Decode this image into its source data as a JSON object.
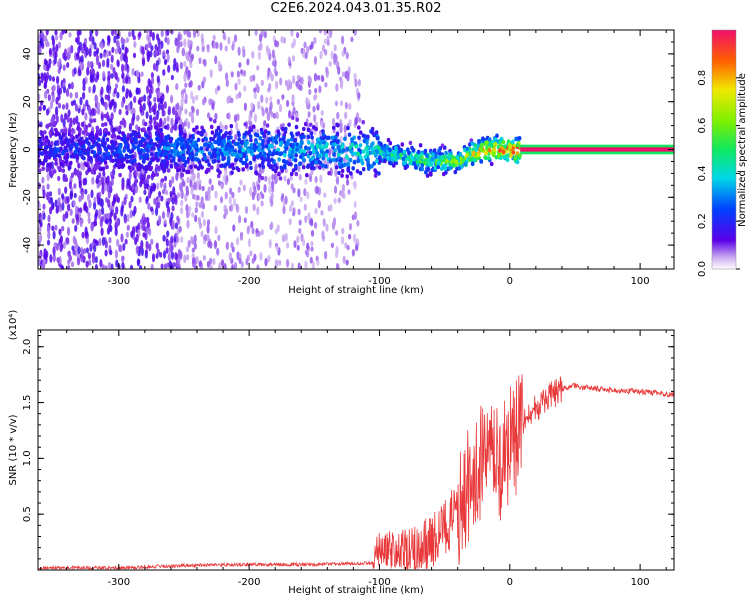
{
  "title": "C2E6.2024.043.01.35.R02",
  "colors": {
    "snr_line": "#e8383a",
    "spectrum_core": "#1ee07a",
    "spectrum_mid": "#00c8d0",
    "spectrum_low": "#5a00e8",
    "spectrum_faint": "#c9a8f0"
  },
  "chart_data": [
    {
      "type": "heatmap",
      "title": "C2E6.2024.043.01.35.R02",
      "xlabel": "Height of straight line (km)",
      "ylabel": "Frequency (Hz)",
      "xlim": [
        -362,
        126
      ],
      "ylim": [
        -50,
        50
      ],
      "xticks": [
        -300,
        -200,
        -100,
        0,
        100
      ],
      "yticks": [
        -40,
        -20,
        0,
        20,
        40
      ],
      "colorbar": {
        "label": "Normalized spectral amplitude",
        "range": [
          0,
          1
        ],
        "ticks": [
          "0.0",
          "0.2",
          "0.4",
          "0.6",
          "0.8"
        ]
      },
      "ridge": [
        {
          "x": -260,
          "freq": 0,
          "amp": 0.3
        },
        {
          "x": -200,
          "freq": 0,
          "amp": 0.35
        },
        {
          "x": -150,
          "freq": 0,
          "amp": 0.4
        },
        {
          "x": -100,
          "freq": -1,
          "amp": 0.45
        },
        {
          "x": -80,
          "freq": -3,
          "amp": 0.5
        },
        {
          "x": -60,
          "freq": -5,
          "amp": 0.55
        },
        {
          "x": -40,
          "freq": -5,
          "amp": 0.6
        },
        {
          "x": -20,
          "freq": 0,
          "amp": 0.8
        },
        {
          "x": 0,
          "freq": 0,
          "amp": 0.95
        },
        {
          "x": 126,
          "freq": 0,
          "amp": 1.0
        }
      ]
    },
    {
      "type": "line",
      "xlabel": "Height of straight line (km)",
      "ylabel": "SNR (10 * v/v)",
      "y_multiplier": "(x10⁴)",
      "xlim": [
        -362,
        126
      ],
      "ylim": [
        0,
        2.15
      ],
      "xticks": [
        -300,
        -200,
        -100,
        0,
        100
      ],
      "yticks": [
        "0.5",
        "1.0",
        "1.5",
        "2.0"
      ],
      "series": [
        {
          "x": [
            -362,
            -300,
            -250,
            -200,
            -150,
            -105,
            -100,
            -80,
            -60,
            -40,
            -30,
            -20,
            -10,
            0,
            10,
            20,
            30,
            40,
            50,
            60,
            80,
            100,
            126
          ],
          "y": [
            0.02,
            0.02,
            0.04,
            0.05,
            0.05,
            0.06,
            0.2,
            0.15,
            0.25,
            0.5,
            0.8,
            1.0,
            0.9,
            1.1,
            1.3,
            1.45,
            1.55,
            1.62,
            1.65,
            1.63,
            1.61,
            1.6,
            1.57
          ]
        }
      ]
    }
  ]
}
